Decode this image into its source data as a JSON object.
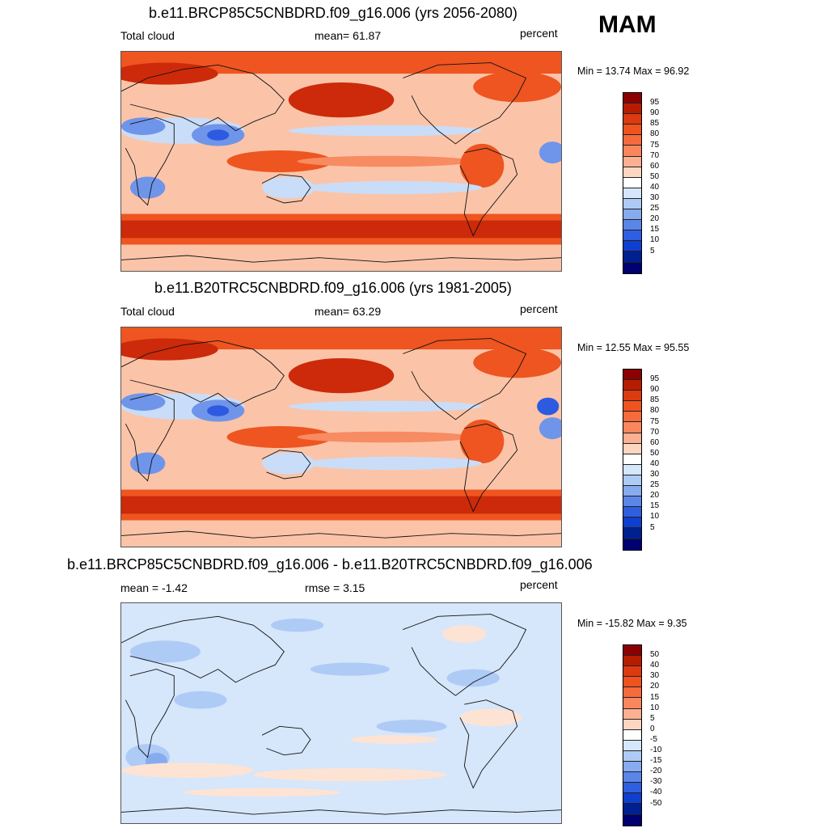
{
  "season": "MAM",
  "panels": [
    {
      "title": "b.e11.BRCP85C5CNBDRD.f09_g16.006 (yrs 2056-2080)",
      "left_label": "Total cloud",
      "center_label": "mean=  61.87",
      "units": "percent",
      "minmax": "Min =  13.74 Max =  96.92",
      "colorbar_labels": [
        "95",
        "90",
        "85",
        "80",
        "75",
        "70",
        "60",
        "50",
        "40",
        "30",
        "25",
        "20",
        "15",
        "10",
        "5"
      ]
    },
    {
      "title": "b.e11.B20TRC5CNBDRD.f09_g16.006 (yrs 1981-2005)",
      "left_label": "Total cloud",
      "center_label": "mean=  63.29",
      "units": "percent",
      "minmax": "Min =  12.55 Max =  95.55",
      "colorbar_labels": [
        "95",
        "90",
        "85",
        "80",
        "75",
        "70",
        "60",
        "50",
        "40",
        "30",
        "25",
        "20",
        "15",
        "10",
        "5"
      ]
    },
    {
      "title": "b.e11.BRCP85C5CNBDRD.f09_g16.006 - b.e11.B20TRC5CNBDRD.f09_g16.006",
      "left_label": "mean =  -1.42",
      "center_label": "rmse =   3.15",
      "units": "percent",
      "minmax": "Min = -15.82 Max =   9.35",
      "colorbar_labels": [
        "50",
        "40",
        "30",
        "20",
        "15",
        "10",
        "5",
        "0",
        "-5",
        "-10",
        "-15",
        "-20",
        "-30",
        "-40",
        "-50"
      ]
    }
  ],
  "colorbar_colors": [
    "#8b0000",
    "#b81c00",
    "#dc3a10",
    "#f0531f",
    "#f66a3c",
    "#f9875d",
    "#fbb092",
    "#fdd6c1",
    "#ffffff",
    "#d6e6fb",
    "#aecbf6",
    "#86abef",
    "#5a86e8",
    "#2f5fe0",
    "#0f3fd0",
    "#002090",
    "#000070"
  ],
  "map_colors": {
    "ocean_base": "#fbc4a8",
    "storm_track": "#cc2a0a",
    "high_cloud": "#ee5520",
    "moderate_cloud": "#f78b62",
    "low_cloud": "#c9ddf8",
    "very_low_cloud": "#6f95ea",
    "clear_sky": "#2d5ae0",
    "diff_base": "#d6e6fb",
    "diff_positive": "#fde3d4",
    "diff_negative": "#aecbf6",
    "diff_strong_negative": "#86abef",
    "coastline": "#111111"
  }
}
